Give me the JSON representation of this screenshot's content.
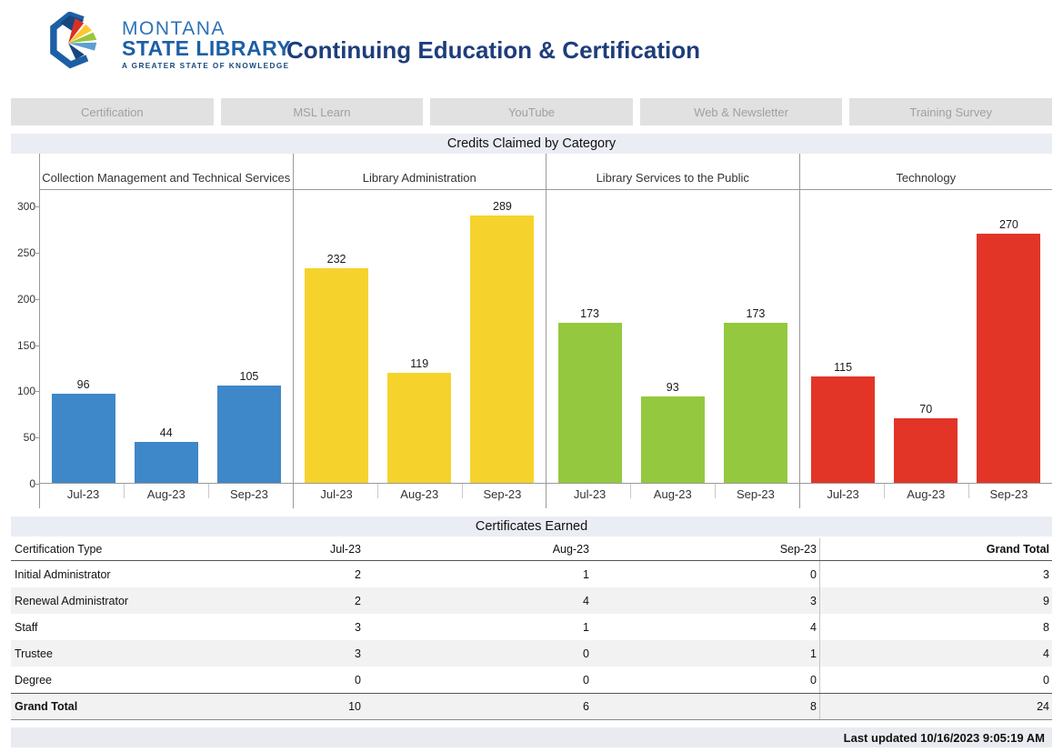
{
  "header": {
    "title": "Continuing Education & Certification",
    "logo": {
      "line1": "MONTANA",
      "line2": "STATE LIBRARY",
      "tagline": "A GREATER STATE OF KNOWLEDGE"
    }
  },
  "tabs": [
    {
      "label": "Certification"
    },
    {
      "label": "MSL Learn"
    },
    {
      "label": "YouTube"
    },
    {
      "label": "Web & Newsletter"
    },
    {
      "label": "Training Survey"
    }
  ],
  "chart_data": {
    "type": "bar",
    "title": "Credits Claimed by Category",
    "categories": [
      "Jul-23",
      "Aug-23",
      "Sep-23"
    ],
    "ylim": [
      0,
      300
    ],
    "yticks": [
      0,
      50,
      100,
      150,
      200,
      250,
      300
    ],
    "legend_position": "none",
    "grid": false,
    "series": [
      {
        "name": "Collection Management and Technical Services",
        "color": "#3e87c8",
        "values": [
          96,
          44,
          105
        ]
      },
      {
        "name": "Library Administration",
        "color": "#f6d32c",
        "values": [
          232,
          119,
          289
        ]
      },
      {
        "name": "Library Services to the Public",
        "color": "#94c83f",
        "values": [
          173,
          93,
          173
        ]
      },
      {
        "name": "Technology",
        "color": "#e23528",
        "values": [
          115,
          70,
          270
        ]
      }
    ]
  },
  "table": {
    "title": "Certificates Earned",
    "columns": [
      "Certification Type",
      "Jul-23",
      "Aug-23",
      "Sep-23",
      "Grand Total"
    ],
    "rows": [
      {
        "label": "Initial Administrator",
        "values": [
          2,
          1,
          0,
          3
        ]
      },
      {
        "label": "Renewal Administrator",
        "values": [
          2,
          4,
          3,
          9
        ]
      },
      {
        "label": "Staff",
        "values": [
          3,
          1,
          4,
          8
        ]
      },
      {
        "label": "Trustee",
        "values": [
          3,
          0,
          1,
          4
        ]
      },
      {
        "label": "Degree",
        "values": [
          0,
          0,
          0,
          0
        ]
      }
    ],
    "total_row": {
      "label": "Grand Total",
      "values": [
        10,
        6,
        8,
        24
      ]
    }
  },
  "footer": {
    "last_updated": "Last updated 10/16/2023 9:05:19 AM"
  },
  "colors": {
    "title_navy": "#1e3d7b",
    "band_bg": "#ebedf4",
    "tab_bg": "#e1e1e1",
    "tab_text": "#a0a0a0",
    "footer_bg": "#e9ebf0",
    "bar_blue": "#3e87c8",
    "bar_yellow": "#f6d32c",
    "bar_green": "#94c83f",
    "bar_red": "#e23528"
  }
}
